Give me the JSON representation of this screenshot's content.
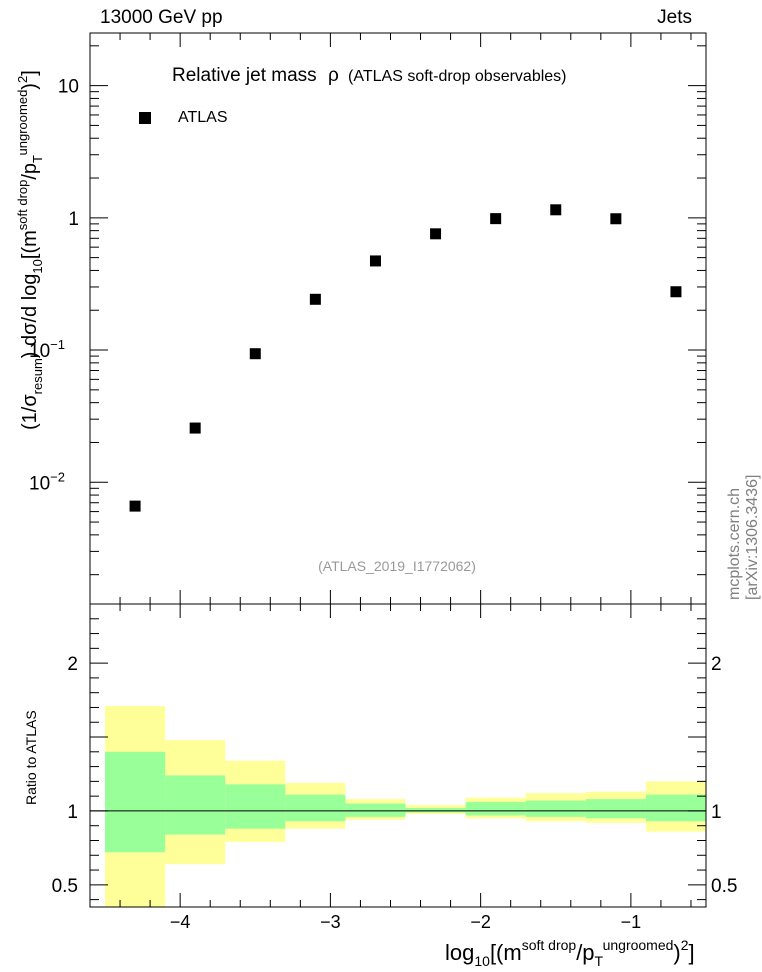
{
  "header": {
    "left": "13000 GeV pp",
    "right": "Jets"
  },
  "side_credit": "mcplots.cern.ch [arXiv:1306.3436]",
  "chart_data": [
    {
      "type": "scatter",
      "title": "Relative jet mass",
      "title_symbol": "ρ",
      "subtitle": "(ATLAS soft-drop observables)",
      "analysis_label": "(ATLAS_2019_I1772062)",
      "legend": [
        {
          "label": "ATLAS",
          "marker": "square",
          "position": "top-left"
        }
      ],
      "xlabel": {
        "prefix": "log",
        "prefix_sub": "10",
        "open": "[(m",
        "sup1": "soft drop",
        "mid": "/p",
        "sub2": "T",
        "sup2": "ungroomed",
        "close": ")",
        "sup3": "2",
        "end": "]"
      },
      "ylabel": {
        "p1": "(1/σ",
        "sub1": "resum",
        "p2": ") dσ/d log",
        "sub2": "10",
        "p3": "[(m",
        "sup3": "soft drop",
        "p4": "/p",
        "sub4": "T",
        "sup4": "ungroomed",
        "p5": ")",
        "sup5": "2",
        "p6": "]"
      },
      "yscale": "log",
      "xlim": [
        -4.6,
        -0.5
      ],
      "ylim": [
        0.0012,
        25
      ],
      "y_ticks": [
        {
          "value": 0.01,
          "base": "10",
          "exp": "−2"
        },
        {
          "value": 0.1,
          "base": "10",
          "exp": "−1"
        },
        {
          "value": 1,
          "base": "1",
          "exp": ""
        },
        {
          "value": 10,
          "base": "10",
          "exp": ""
        }
      ],
      "series": [
        {
          "name": "ATLAS",
          "x": [
            -4.3,
            -3.9,
            -3.5,
            -3.1,
            -2.7,
            -2.3,
            -1.9,
            -1.5,
            -1.1,
            -0.7
          ],
          "y": [
            0.0066,
            0.0257,
            0.0938,
            0.242,
            0.472,
            0.757,
            0.986,
            1.15,
            0.984,
            0.276
          ]
        }
      ]
    },
    {
      "type": "area",
      "ylabel": "Ratio to ATLAS",
      "ylim": [
        0.35,
        2.4
      ],
      "y_tick_values": [
        0.5,
        1,
        2
      ],
      "y_tick_labels": [
        "0.5",
        "1",
        "2"
      ],
      "x_tick_values": [
        -4,
        -3,
        -2,
        -1
      ],
      "x_tick_labels": [
        "−4",
        "−3",
        "−2",
        "−1"
      ],
      "reference_line": 1,
      "bin_edges": [
        -4.5,
        -4.1,
        -3.7,
        -3.3,
        -2.9,
        -2.5,
        -2.1,
        -1.7,
        -1.3,
        -0.9,
        -0.5
      ],
      "series": [
        {
          "name": "outer uncertainty band",
          "color": "#ffff99",
          "low": [
            0.35,
            0.64,
            0.79,
            0.88,
            0.94,
            0.98,
            0.95,
            0.93,
            0.92,
            0.86
          ],
          "high": [
            1.71,
            1.48,
            1.34,
            1.19,
            1.08,
            1.04,
            1.09,
            1.12,
            1.13,
            1.2
          ]
        },
        {
          "name": "inner uncertainty band",
          "color": "#99ff99",
          "low": [
            0.72,
            0.84,
            0.88,
            0.93,
            0.96,
            0.99,
            0.97,
            0.96,
            0.95,
            0.93
          ],
          "high": [
            1.4,
            1.24,
            1.18,
            1.11,
            1.05,
            1.02,
            1.06,
            1.07,
            1.08,
            1.11
          ]
        }
      ]
    }
  ]
}
